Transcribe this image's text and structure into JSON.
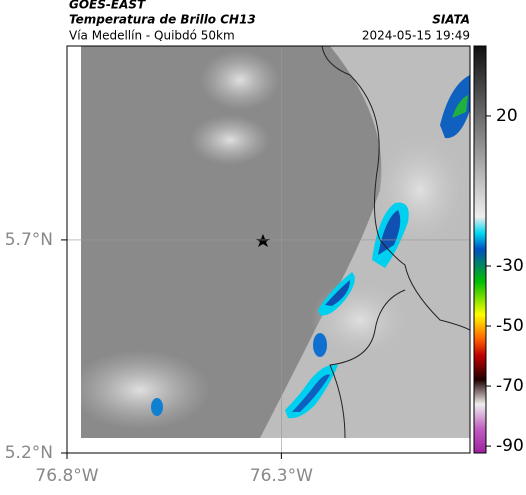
{
  "header": {
    "source": "GOES-EAST",
    "product": "Temperatura de Brillo CH13",
    "org": "SIATA",
    "route": "Vía Medellín - Quibdó 50km",
    "datetime": "2024-05-15 19:49"
  },
  "map": {
    "xlim": [
      -76.8,
      -75.86
    ],
    "ylim": [
      5.2,
      6.155
    ],
    "xticks": [
      {
        "value": -76.8,
        "label": "76.8°W"
      },
      {
        "value": -76.3,
        "label": "76.3°W"
      }
    ],
    "yticks": [
      {
        "value": 5.7,
        "label": "5.7°N"
      },
      {
        "value": 5.2,
        "label": "5.2°N"
      }
    ],
    "grid": true
  },
  "colorbar": {
    "lim": [
      -92.3,
      43.3
    ],
    "ticks": [
      20,
      -30,
      -50,
      -70,
      -90
    ]
  }
}
